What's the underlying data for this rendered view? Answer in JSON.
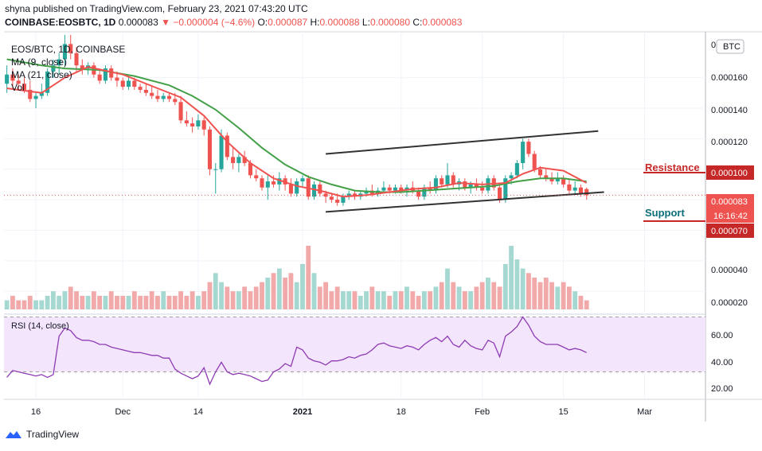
{
  "header": {
    "published_text": "shyna published on TradingView.com, February 23, 2021 07:43:20 UTC"
  },
  "symbol_bar": {
    "symbol": "COINBASE:EOSBTC, 1D",
    "last": "0.000083",
    "change": "−0.000004 (−4.6%)",
    "o_label": "O:",
    "o_value": "0.000087",
    "h_label": "H:",
    "h_value": "0.000088",
    "l_label": "L:",
    "l_value": "0.000080",
    "c_label": "C:",
    "c_value": "0.000083"
  },
  "legend": {
    "pair": "EOS/BTC, 1D, COINBASE",
    "ma9": "MA (9, close)",
    "ma21": "MA (21, close)",
    "vol": "Vol"
  },
  "currency_badge": "BTC",
  "price_axis": [
    "0.000160",
    "0.000140",
    "0.000120",
    "0.000100",
    "0.000083",
    "0.000070",
    "0.000040",
    "0.000020"
  ],
  "price_axis_top": "0",
  "price_tags": {
    "last_price": "0.000083",
    "countdown": "16:16:42",
    "support_price": "0.000070",
    "resistance_price": "0.000100"
  },
  "annotations": {
    "resistance": "Resistance",
    "support": "Support"
  },
  "rsi": {
    "label": "RSI (14, close)",
    "axis": [
      "60.00",
      "40.00",
      "20.00"
    ]
  },
  "time_axis": [
    "16",
    "Dec",
    "14",
    "2021",
    "18",
    "Feb",
    "15",
    "Mar"
  ],
  "brand": "TradingView",
  "colors": {
    "up": "#26a69a",
    "down": "#ef5350",
    "ma9": "#ef5350",
    "ma21": "#43a047",
    "volume_up": "#a6d8d2",
    "volume_down": "#f2a9a9",
    "rsi_line": "#8e3bb3",
    "rsi_band": "#f3e5fc",
    "trendline": "#333333",
    "resistance": "#c62828"
  },
  "chart_data": {
    "type": "candlestick",
    "title": "EOS/BTC, 1D, COINBASE",
    "ylim": [
      5e-06,
      0.00019
    ],
    "candles_day_index": "0 = Nov 11 2020",
    "candles": [
      {
        "d": 0,
        "o": 0.000156,
        "h": 0.000168,
        "l": 0.00015,
        "c": 0.000162
      },
      {
        "d": 1,
        "o": 0.000162,
        "h": 0.000166,
        "l": 0.000153,
        "c": 0.000158
      },
      {
        "d": 2,
        "o": 0.000158,
        "h": 0.000162,
        "l": 0.000152,
        "c": 0.000156
      },
      {
        "d": 3,
        "o": 0.000156,
        "h": 0.00016,
        "l": 0.00015,
        "c": 0.000152
      },
      {
        "d": 4,
        "o": 0.000152,
        "h": 0.000158,
        "l": 0.000144,
        "c": 0.000146
      },
      {
        "d": 5,
        "o": 0.000146,
        "h": 0.00015,
        "l": 0.00014,
        "c": 0.000148
      },
      {
        "d": 6,
        "o": 0.000148,
        "h": 0.000156,
        "l": 0.000146,
        "c": 0.00015
      },
      {
        "d": 7,
        "o": 0.00015,
        "h": 0.000166,
        "l": 0.000148,
        "c": 0.000164
      },
      {
        "d": 8,
        "o": 0.000164,
        "h": 0.000172,
        "l": 0.00016,
        "c": 0.000168
      },
      {
        "d": 9,
        "o": 0.000168,
        "h": 0.000176,
        "l": 0.000162,
        "c": 0.000172
      },
      {
        "d": 10,
        "o": 0.000172,
        "h": 0.000188,
        "l": 0.000168,
        "c": 0.000182
      },
      {
        "d": 11,
        "o": 0.000182,
        "h": 0.000188,
        "l": 0.000172,
        "c": 0.000176
      },
      {
        "d": 12,
        "o": 0.000176,
        "h": 0.00018,
        "l": 0.000164,
        "c": 0.000168
      },
      {
        "d": 13,
        "o": 0.000168,
        "h": 0.000172,
        "l": 0.000162,
        "c": 0.000166
      },
      {
        "d": 14,
        "o": 0.000166,
        "h": 0.00017,
        "l": 0.000162,
        "c": 0.000168
      },
      {
        "d": 15,
        "o": 0.000168,
        "h": 0.00017,
        "l": 0.00016,
        "c": 0.000162
      },
      {
        "d": 16,
        "o": 0.000162,
        "h": 0.000166,
        "l": 0.000156,
        "c": 0.000158
      },
      {
        "d": 17,
        "o": 0.000158,
        "h": 0.000168,
        "l": 0.000156,
        "c": 0.000166
      },
      {
        "d": 18,
        "o": 0.000166,
        "h": 0.000168,
        "l": 0.000158,
        "c": 0.00016
      },
      {
        "d": 19,
        "o": 0.00016,
        "h": 0.000164,
        "l": 0.000154,
        "c": 0.000158
      },
      {
        "d": 20,
        "o": 0.000158,
        "h": 0.00016,
        "l": 0.000152,
        "c": 0.000154
      },
      {
        "d": 21,
        "o": 0.000154,
        "h": 0.00016,
        "l": 0.000152,
        "c": 0.000158
      },
      {
        "d": 22,
        "o": 0.000158,
        "h": 0.00016,
        "l": 0.000152,
        "c": 0.000154
      },
      {
        "d": 23,
        "o": 0.000154,
        "h": 0.000156,
        "l": 0.00015,
        "c": 0.000152
      },
      {
        "d": 24,
        "o": 0.000152,
        "h": 0.000156,
        "l": 0.000148,
        "c": 0.00015
      },
      {
        "d": 25,
        "o": 0.00015,
        "h": 0.000154,
        "l": 0.000146,
        "c": 0.000148
      },
      {
        "d": 26,
        "o": 0.000148,
        "h": 0.000152,
        "l": 0.000144,
        "c": 0.000146
      },
      {
        "d": 27,
        "o": 0.000146,
        "h": 0.00015,
        "l": 0.000144,
        "c": 0.000148
      },
      {
        "d": 28,
        "o": 0.000148,
        "h": 0.00015,
        "l": 0.000144,
        "c": 0.000146
      },
      {
        "d": 29,
        "o": 0.000146,
        "h": 0.00015,
        "l": 0.000142,
        "c": 0.000144
      },
      {
        "d": 30,
        "o": 0.000144,
        "h": 0.000148,
        "l": 0.00013,
        "c": 0.000132
      },
      {
        "d": 31,
        "o": 0.000132,
        "h": 0.000138,
        "l": 0.000128,
        "c": 0.00013
      },
      {
        "d": 32,
        "o": 0.00013,
        "h": 0.000134,
        "l": 0.000124,
        "c": 0.000128
      },
      {
        "d": 33,
        "o": 0.000128,
        "h": 0.000136,
        "l": 0.000126,
        "c": 0.000132
      },
      {
        "d": 34,
        "o": 0.000132,
        "h": 0.000134,
        "l": 0.000122,
        "c": 0.000126
      },
      {
        "d": 35,
        "o": 0.000126,
        "h": 0.000128,
        "l": 9.6e-05,
        "c": 0.0001
      },
      {
        "d": 36,
        "o": 0.0001,
        "h": 0.000104,
        "l": 8.4e-05,
        "c": 0.0001
      },
      {
        "d": 37,
        "o": 0.0001,
        "h": 0.000126,
        "l": 9.8e-05,
        "c": 0.000122
      },
      {
        "d": 38,
        "o": 0.000122,
        "h": 0.000124,
        "l": 0.000106,
        "c": 0.000108
      },
      {
        "d": 39,
        "o": 0.000108,
        "h": 0.000114,
        "l": 0.0001,
        "c": 0.000104
      },
      {
        "d": 40,
        "o": 0.000104,
        "h": 0.00011,
        "l": 9.8e-05,
        "c": 0.000108
      },
      {
        "d": 41,
        "o": 0.000108,
        "h": 0.000112,
        "l": 0.000102,
        "c": 0.000104
      },
      {
        "d": 42,
        "o": 0.000104,
        "h": 0.000106,
        "l": 9.4e-05,
        "c": 9.6e-05
      },
      {
        "d": 43,
        "o": 9.6e-05,
        "h": 0.0001,
        "l": 9.2e-05,
        "c": 9.4e-05
      },
      {
        "d": 44,
        "o": 9.4e-05,
        "h": 9.6e-05,
        "l": 8.6e-05,
        "c": 8.8e-05
      },
      {
        "d": 45,
        "o": 8.8e-05,
        "h": 9.6e-05,
        "l": 8e-05,
        "c": 9.2e-05
      },
      {
        "d": 46,
        "o": 9.2e-05,
        "h": 9.6e-05,
        "l": 8.8e-05,
        "c": 9e-05
      },
      {
        "d": 47,
        "o": 9e-05,
        "h": 9.8e-05,
        "l": 8.6e-05,
        "c": 9.4e-05
      },
      {
        "d": 48,
        "o": 9.4e-05,
        "h": 9.6e-05,
        "l": 8.6e-05,
        "c": 9e-05
      },
      {
        "d": 49,
        "o": 9e-05,
        "h": 9.4e-05,
        "l": 8.2e-05,
        "c": 8.4e-05
      },
      {
        "d": 50,
        "o": 8.4e-05,
        "h": 9.4e-05,
        "l": 8.2e-05,
        "c": 9.2e-05
      },
      {
        "d": 51,
        "o": 9.2e-05,
        "h": 9.6e-05,
        "l": 8.8e-05,
        "c": 9.4e-05
      },
      {
        "d": 52,
        "o": 9.4e-05,
        "h": 9.6e-05,
        "l": 8e-05,
        "c": 8.2e-05
      },
      {
        "d": 53,
        "o": 8.2e-05,
        "h": 9.2e-05,
        "l": 8e-05,
        "c": 9e-05
      },
      {
        "d": 54,
        "o": 9e-05,
        "h": 9.2e-05,
        "l": 8.2e-05,
        "c": 8.4e-05
      },
      {
        "d": 55,
        "o": 8.4e-05,
        "h": 8.6e-05,
        "l": 7.8e-05,
        "c": 8.2e-05
      },
      {
        "d": 56,
        "o": 8.2e-05,
        "h": 8.4e-05,
        "l": 7.8e-05,
        "c": 8e-05
      },
      {
        "d": 57,
        "o": 8e-05,
        "h": 8.4e-05,
        "l": 7.6e-05,
        "c": 7.8e-05
      },
      {
        "d": 58,
        "o": 7.8e-05,
        "h": 8.4e-05,
        "l": 7.6e-05,
        "c": 8.2e-05
      },
      {
        "d": 59,
        "o": 8.2e-05,
        "h": 8.6e-05,
        "l": 8e-05,
        "c": 8.4e-05
      },
      {
        "d": 60,
        "o": 8.4e-05,
        "h": 8.6e-05,
        "l": 8e-05,
        "c": 8.2e-05
      },
      {
        "d": 61,
        "o": 8.2e-05,
        "h": 8.6e-05,
        "l": 8e-05,
        "c": 8.4e-05
      },
      {
        "d": 62,
        "o": 8.4e-05,
        "h": 8.8e-05,
        "l": 8.2e-05,
        "c": 8.6e-05
      },
      {
        "d": 63,
        "o": 8.6e-05,
        "h": 9e-05,
        "l": 8.2e-05,
        "c": 8.4e-05
      },
      {
        "d": 64,
        "o": 8.4e-05,
        "h": 8.8e-05,
        "l": 8.2e-05,
        "c": 8.6e-05
      },
      {
        "d": 65,
        "o": 8.6e-05,
        "h": 9.2e-05,
        "l": 8.4e-05,
        "c": 8.8e-05
      },
      {
        "d": 66,
        "o": 8.8e-05,
        "h": 9e-05,
        "l": 8.4e-05,
        "c": 8.6e-05
      },
      {
        "d": 67,
        "o": 8.6e-05,
        "h": 9e-05,
        "l": 8.4e-05,
        "c": 8.8e-05
      },
      {
        "d": 68,
        "o": 8.8e-05,
        "h": 9e-05,
        "l": 8.4e-05,
        "c": 8.6e-05
      },
      {
        "d": 69,
        "o": 8.6e-05,
        "h": 9e-05,
        "l": 8.2e-05,
        "c": 8.8e-05
      },
      {
        "d": 70,
        "o": 8.8e-05,
        "h": 9.2e-05,
        "l": 8.4e-05,
        "c": 8.6e-05
      },
      {
        "d": 71,
        "o": 8.6e-05,
        "h": 8.8e-05,
        "l": 8e-05,
        "c": 8.2e-05
      },
      {
        "d": 72,
        "o": 8.2e-05,
        "h": 9e-05,
        "l": 8e-05,
        "c": 8.8e-05
      },
      {
        "d": 73,
        "o": 8.8e-05,
        "h": 9.2e-05,
        "l": 8.4e-05,
        "c": 8.6e-05
      },
      {
        "d": 74,
        "o": 8.6e-05,
        "h": 9.6e-05,
        "l": 8.4e-05,
        "c": 9.4e-05
      },
      {
        "d": 75,
        "o": 9.4e-05,
        "h": 9.6e-05,
        "l": 8.8e-05,
        "c": 9e-05
      },
      {
        "d": 76,
        "o": 9e-05,
        "h": 0.000104,
        "l": 8.8e-05,
        "c": 9.6e-05
      },
      {
        "d": 77,
        "o": 9.6e-05,
        "h": 9.8e-05,
        "l": 8.8e-05,
        "c": 9e-05
      },
      {
        "d": 78,
        "o": 9e-05,
        "h": 9.4e-05,
        "l": 8.6e-05,
        "c": 9.2e-05
      },
      {
        "d": 79,
        "o": 9.2e-05,
        "h": 9.4e-05,
        "l": 8.6e-05,
        "c": 8.8e-05
      },
      {
        "d": 80,
        "o": 8.8e-05,
        "h": 9.2e-05,
        "l": 8.4e-05,
        "c": 9e-05
      },
      {
        "d": 81,
        "o": 9e-05,
        "h": 9.4e-05,
        "l": 8.6e-05,
        "c": 8.8e-05
      },
      {
        "d": 82,
        "o": 8.8e-05,
        "h": 9.2e-05,
        "l": 8.4e-05,
        "c": 8.6e-05
      },
      {
        "d": 83,
        "o": 8.6e-05,
        "h": 9.6e-05,
        "l": 8.4e-05,
        "c": 9.4e-05
      },
      {
        "d": 84,
        "o": 9.4e-05,
        "h": 9.6e-05,
        "l": 8.6e-05,
        "c": 8.8e-05
      },
      {
        "d": 85,
        "o": 8.8e-05,
        "h": 9e-05,
        "l": 7.8e-05,
        "c": 8e-05
      },
      {
        "d": 86,
        "o": 8e-05,
        "h": 9.6e-05,
        "l": 7.8e-05,
        "c": 9.4e-05
      },
      {
        "d": 87,
        "o": 9.4e-05,
        "h": 9.8e-05,
        "l": 9e-05,
        "c": 9.6e-05
      },
      {
        "d": 88,
        "o": 9.6e-05,
        "h": 0.000106,
        "l": 9.4e-05,
        "c": 0.000104
      },
      {
        "d": 89,
        "o": 0.000104,
        "h": 0.00012,
        "l": 0.0001,
        "c": 0.000118
      },
      {
        "d": 90,
        "o": 0.000118,
        "h": 0.00012,
        "l": 0.000108,
        "c": 0.00011
      },
      {
        "d": 91,
        "o": 0.00011,
        "h": 0.000112,
        "l": 9.8e-05,
        "c": 0.0001
      },
      {
        "d": 92,
        "o": 0.0001,
        "h": 0.000102,
        "l": 9.4e-05,
        "c": 9.6e-05
      },
      {
        "d": 93,
        "o": 9.6e-05,
        "h": 0.0001,
        "l": 9.2e-05,
        "c": 9.4e-05
      },
      {
        "d": 94,
        "o": 9.4e-05,
        "h": 9.8e-05,
        "l": 9e-05,
        "c": 9.2e-05
      },
      {
        "d": 95,
        "o": 9.2e-05,
        "h": 9.8e-05,
        "l": 9e-05,
        "c": 9.4e-05
      },
      {
        "d": 96,
        "o": 9.4e-05,
        "h": 9.6e-05,
        "l": 8.8e-05,
        "c": 9e-05
      },
      {
        "d": 97,
        "o": 9e-05,
        "h": 9.4e-05,
        "l": 8.4e-05,
        "c": 8.6e-05
      },
      {
        "d": 98,
        "o": 8.6e-05,
        "h": 9.2e-05,
        "l": 8.4e-05,
        "c": 8.8e-05
      },
      {
        "d": 99,
        "o": 8.8e-05,
        "h": 9e-05,
        "l": 8.2e-05,
        "c": 8.4e-05
      },
      {
        "d": 100,
        "o": 8.7e-05,
        "h": 8.8e-05,
        "l": 8e-05,
        "c": 8.3e-05
      }
    ],
    "ma9_points": [
      [
        0,
        0.000153
      ],
      [
        6,
        0.00015
      ],
      [
        10,
        0.00016
      ],
      [
        14,
        0.000167
      ],
      [
        20,
        0.000162
      ],
      [
        26,
        0.000153
      ],
      [
        30,
        0.000147
      ],
      [
        34,
        0.000135
      ],
      [
        38,
        0.000118
      ],
      [
        42,
        0.000104
      ],
      [
        46,
        9.4e-05
      ],
      [
        50,
        8.9e-05
      ],
      [
        54,
        8.6e-05
      ],
      [
        58,
        8.2e-05
      ],
      [
        62,
        8.3e-05
      ],
      [
        66,
        8.5e-05
      ],
      [
        70,
        8.7e-05
      ],
      [
        74,
        8.8e-05
      ],
      [
        78,
        9.1e-05
      ],
      [
        82,
        9e-05
      ],
      [
        86,
        9.1e-05
      ],
      [
        89,
        9.7e-05
      ],
      [
        92,
        0.000101
      ],
      [
        96,
        9.9e-05
      ],
      [
        100,
        9.1e-05
      ]
    ],
    "ma21_points": [
      [
        0,
        0.000172
      ],
      [
        6,
        0.000168
      ],
      [
        10,
        0.000166
      ],
      [
        16,
        0.000165
      ],
      [
        22,
        0.000161
      ],
      [
        28,
        0.000155
      ],
      [
        32,
        0.000148
      ],
      [
        36,
        0.000139
      ],
      [
        40,
        0.000127
      ],
      [
        44,
        0.000114
      ],
      [
        48,
        0.000103
      ],
      [
        52,
        9.5e-05
      ],
      [
        56,
        9e-05
      ],
      [
        60,
        8.6e-05
      ],
      [
        64,
        8.5e-05
      ],
      [
        68,
        8.5e-05
      ],
      [
        72,
        8.6e-05
      ],
      [
        76,
        8.7e-05
      ],
      [
        80,
        8.8e-05
      ],
      [
        84,
        8.9e-05
      ],
      [
        88,
        9.2e-05
      ],
      [
        92,
        9.4e-05
      ],
      [
        96,
        9.4e-05
      ],
      [
        100,
        9.2e-05
      ]
    ],
    "trendlines": [
      {
        "name": "upper",
        "from": [
          55,
          0.00011
        ],
        "to": [
          102,
          0.000125
        ]
      },
      {
        "name": "lower",
        "from": [
          55,
          7.2e-05
        ],
        "to": [
          103,
          8.5e-05
        ]
      }
    ],
    "volume": [
      2,
      3,
      2,
      2,
      3,
      2,
      2,
      3,
      4,
      3,
      4,
      5,
      4,
      3,
      3,
      4,
      3,
      3,
      4,
      3,
      3,
      3,
      4,
      3,
      3,
      4,
      3,
      4,
      3,
      3,
      4,
      3,
      4,
      3,
      4,
      6,
      8,
      6,
      5,
      4,
      4,
      5,
      4,
      5,
      6,
      7,
      8,
      9,
      7,
      8,
      6,
      10,
      14,
      8,
      5,
      6,
      4,
      5,
      4,
      4,
      4,
      3,
      4,
      5,
      4,
      4,
      3,
      4,
      4,
      5,
      4,
      3,
      4,
      4,
      5,
      6,
      9,
      6,
      5,
      4,
      4,
      5,
      6,
      7,
      6,
      5,
      10,
      14,
      11,
      9,
      8,
      7,
      6,
      7,
      6,
      5,
      6,
      5,
      4,
      3,
      2
    ],
    "rsi_values": [
      26,
      31,
      30,
      29,
      28,
      27,
      28,
      26,
      28,
      56,
      62,
      60,
      55,
      53,
      53,
      52,
      50,
      50,
      48,
      47,
      46,
      45,
      44,
      44,
      43,
      42,
      42,
      40,
      40,
      32,
      29,
      27,
      25,
      27,
      33,
      21,
      30,
      37,
      30,
      28,
      29,
      28,
      27,
      25,
      23,
      24,
      30,
      32,
      36,
      34,
      48,
      46,
      40,
      38,
      37,
      35,
      38,
      38,
      39,
      41,
      40,
      42,
      43,
      46,
      50,
      51,
      49,
      48,
      47,
      49,
      48,
      46,
      50,
      53,
      55,
      52,
      56,
      50,
      48,
      53,
      49,
      47,
      46,
      53,
      51,
      41,
      56,
      59,
      63,
      70,
      64,
      56,
      52,
      50,
      50,
      50,
      48,
      46,
      47,
      46,
      44
    ],
    "rsi_ylim": [
      10,
      72
    ],
    "rsi_band": [
      30,
      70
    ],
    "x_ticks": [
      {
        "label": "16",
        "d": 5
      },
      {
        "label": "Dec",
        "d": 20
      },
      {
        "label": "14",
        "d": 33
      },
      {
        "label": "2021",
        "d": 51
      },
      {
        "label": "18",
        "d": 68
      },
      {
        "label": "Feb",
        "d": 82
      },
      {
        "label": "15",
        "d": 96
      },
      {
        "label": "Mar",
        "d": 110
      }
    ],
    "xlim": [
      -0.5,
      120.5
    ]
  }
}
